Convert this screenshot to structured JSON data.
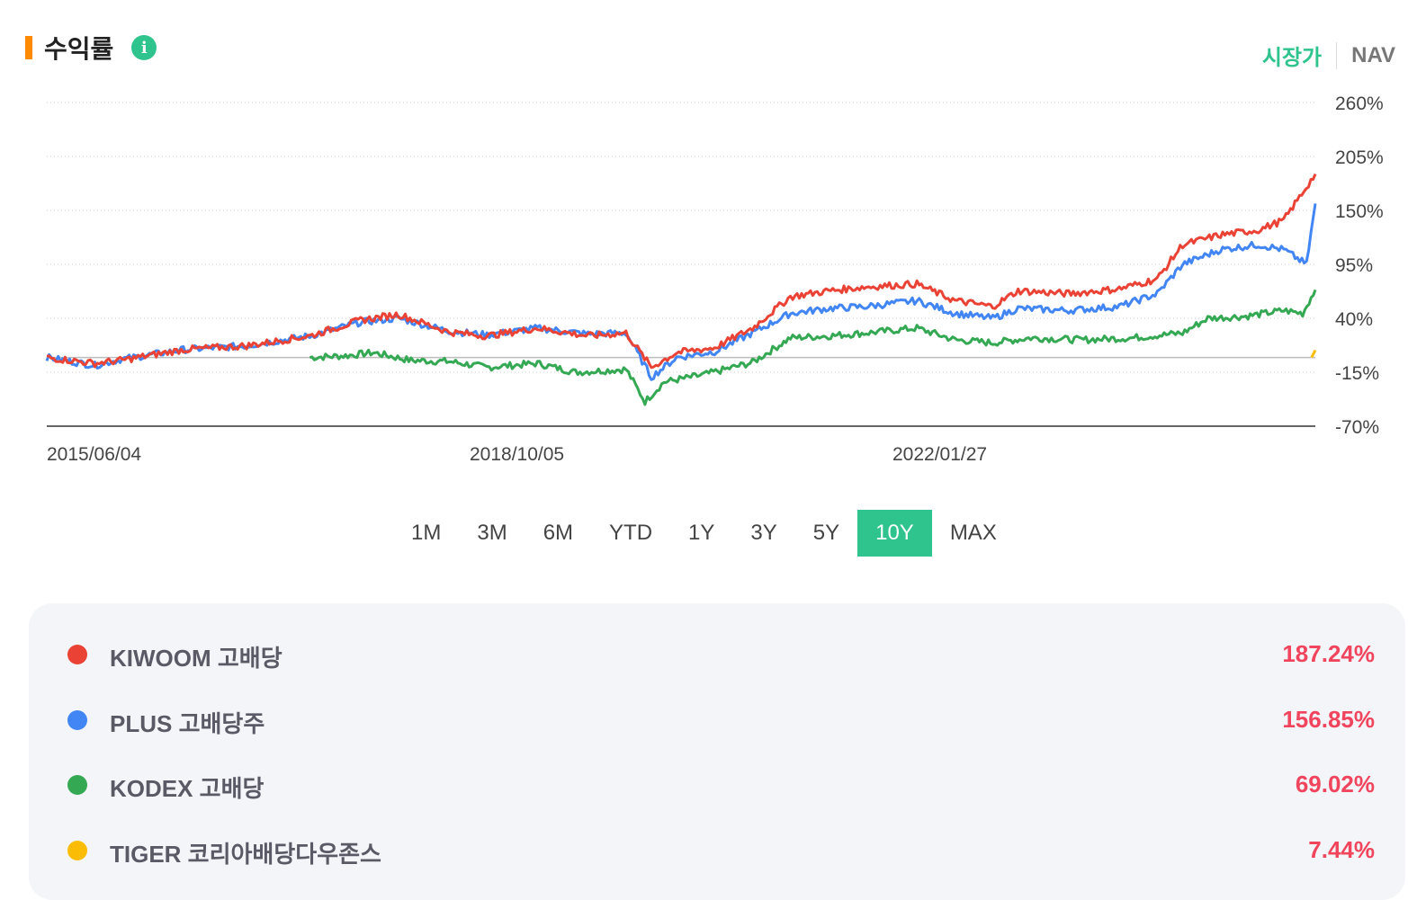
{
  "header": {
    "title": "수익률",
    "info_icon": "info-icon"
  },
  "toggle": {
    "market_price": "시장가",
    "nav": "NAV"
  },
  "periods": [
    "1M",
    "3M",
    "6M",
    "YTD",
    "1Y",
    "3Y",
    "5Y",
    "10Y",
    "MAX"
  ],
  "active_period": "10Y",
  "legend": [
    {
      "name": "KIWOOM 고배당",
      "value": "187.24%",
      "color": "#ea4335"
    },
    {
      "name": "PLUS 고배당주",
      "value": "156.85%",
      "color": "#4285f4"
    },
    {
      "name": "KODEX 고배당",
      "value": "69.02%",
      "color": "#34a853"
    },
    {
      "name": "TIGER 코리아배당다우존스",
      "value": "7.44%",
      "color": "#fbbc05"
    }
  ],
  "chart_data": {
    "type": "line",
    "title": "",
    "xlabel": "",
    "ylabel": "",
    "ylim": [
      -70,
      260
    ],
    "y_ticks": [
      "260%",
      "205%",
      "150%",
      "95%",
      "40%",
      "-15%",
      "-70%"
    ],
    "x_ticks": [
      "2015/06/04",
      "2018/10/05",
      "2022/01/27"
    ],
    "grid": "dotted horizontal",
    "baseline": 0,
    "series": [
      {
        "name": "KIWOOM 고배당",
        "color": "#ea4335",
        "x": [
          2015.42,
          2015.8,
          2016.0,
          2016.5,
          2017.0,
          2017.5,
          2017.9,
          2018.2,
          2018.6,
          2018.9,
          2019.3,
          2019.7,
          2020.0,
          2020.2,
          2020.4,
          2020.7,
          2021.0,
          2021.3,
          2021.6,
          2021.9,
          2022.3,
          2022.6,
          2022.9,
          2023.1,
          2023.5,
          2023.9,
          2024.2,
          2024.4,
          2024.7,
          2025.0,
          2025.2,
          2025.45
        ],
        "y": [
          0,
          -6,
          -3,
          8,
          12,
          22,
          38,
          44,
          26,
          22,
          30,
          22,
          25,
          -10,
          5,
          10,
          30,
          62,
          68,
          72,
          75,
          58,
          52,
          68,
          65,
          70,
          80,
          115,
          125,
          130,
          140,
          187
        ]
      },
      {
        "name": "PLUS 고배당주",
        "color": "#4285f4",
        "x": [
          2015.42,
          2015.8,
          2016.0,
          2016.5,
          2017.0,
          2017.5,
          2017.9,
          2018.2,
          2018.6,
          2018.9,
          2019.3,
          2019.7,
          2020.0,
          2020.2,
          2020.4,
          2020.7,
          2021.0,
          2021.3,
          2021.6,
          2021.9,
          2022.3,
          2022.6,
          2022.9,
          2023.1,
          2023.5,
          2023.9,
          2024.2,
          2024.4,
          2024.7,
          2025.0,
          2025.2,
          2025.38,
          2025.45
        ],
        "y": [
          0,
          -8,
          -2,
          8,
          12,
          22,
          36,
          40,
          27,
          23,
          30,
          24,
          25,
          -20,
          0,
          6,
          25,
          45,
          50,
          52,
          58,
          45,
          40,
          50,
          48,
          52,
          65,
          95,
          110,
          115,
          110,
          95,
          157
        ]
      },
      {
        "name": "KODEX 고배당",
        "color": "#34a853",
        "x": [
          2017.5,
          2017.8,
          2018.0,
          2018.3,
          2018.6,
          2018.9,
          2019.3,
          2019.6,
          2020.0,
          2020.15,
          2020.3,
          2020.6,
          2021.0,
          2021.3,
          2021.6,
          2021.9,
          2022.3,
          2022.6,
          2022.9,
          2023.2,
          2023.6,
          2024.0,
          2024.4,
          2024.6,
          2024.9,
          2025.2,
          2025.35,
          2025.45
        ],
        "y": [
          0,
          2,
          5,
          -3,
          -4,
          -10,
          -6,
          -15,
          -12,
          -45,
          -25,
          -18,
          -5,
          20,
          22,
          25,
          30,
          18,
          15,
          20,
          18,
          20,
          25,
          40,
          42,
          48,
          45,
          69
        ]
      },
      {
        "name": "TIGER 코리아배당다우존스",
        "color": "#fbbc05",
        "x": [
          2025.42,
          2025.45
        ],
        "y": [
          0,
          7.44
        ]
      }
    ]
  }
}
